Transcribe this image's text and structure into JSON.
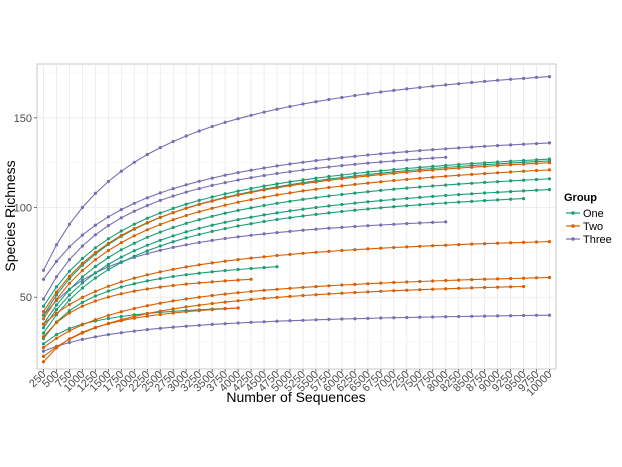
{
  "chart_data": {
    "type": "line",
    "xlabel": "Number of Sequences",
    "ylabel": "Species Richness",
    "x_ticks": [
      250,
      500,
      750,
      1000,
      1250,
      1500,
      1750,
      2000,
      2250,
      2500,
      2750,
      3000,
      3250,
      3500,
      3750,
      4000,
      4250,
      4500,
      4750,
      5000,
      5250,
      5500,
      5750,
      6000,
      6250,
      6500,
      6750,
      7000,
      7250,
      7500,
      7750,
      8000,
      8250,
      8500,
      8750,
      9000,
      9250,
      9500,
      9750,
      10000
    ],
    "y_ticks": [
      50,
      100,
      150
    ],
    "ylim": [
      10,
      180
    ],
    "grid": true,
    "legend": {
      "title": "Group",
      "position": "right",
      "entries": [
        {
          "label": "One",
          "color": "#1b9e77"
        },
        {
          "label": "Two",
          "color": "#d95f02"
        },
        {
          "label": "Three",
          "color": "#7570b3"
        }
      ]
    },
    "series": [
      {
        "group": "Three",
        "start": 65,
        "end": 173,
        "xmax": 10000
      },
      {
        "group": "Three",
        "start": 60,
        "end": 136,
        "xmax": 10000
      },
      {
        "group": "Three",
        "start": 49,
        "end": 128,
        "xmax": 8000
      },
      {
        "group": "Three",
        "start": 40,
        "end": 92,
        "xmax": 8000
      },
      {
        "group": "Three",
        "start": 20,
        "end": 40,
        "xmax": 10000
      },
      {
        "group": "One",
        "start": 45,
        "end": 127,
        "xmax": 10000
      },
      {
        "group": "One",
        "start": 40,
        "end": 126,
        "xmax": 10000
      },
      {
        "group": "One",
        "start": 35,
        "end": 116,
        "xmax": 10000
      },
      {
        "group": "One",
        "start": 33,
        "end": 110,
        "xmax": 10000
      },
      {
        "group": "One",
        "start": 30,
        "end": 105,
        "xmax": 9500
      },
      {
        "group": "One",
        "start": 27,
        "end": 67,
        "xmax": 4750
      },
      {
        "group": "One",
        "start": 24,
        "end": 44,
        "xmax": 4000
      },
      {
        "group": "Two",
        "start": 42,
        "end": 125,
        "xmax": 10000
      },
      {
        "group": "Two",
        "start": 38,
        "end": 121,
        "xmax": 10000
      },
      {
        "group": "Two",
        "start": 35,
        "end": 81,
        "xmax": 10000
      },
      {
        "group": "Two",
        "start": 28,
        "end": 60,
        "xmax": 4250
      },
      {
        "group": "Two",
        "start": 22,
        "end": 61,
        "xmax": 10000
      },
      {
        "group": "Two",
        "start": 17,
        "end": 56,
        "xmax": 9500
      },
      {
        "group": "Two",
        "start": 14,
        "end": 44,
        "xmax": 4000
      }
    ]
  }
}
